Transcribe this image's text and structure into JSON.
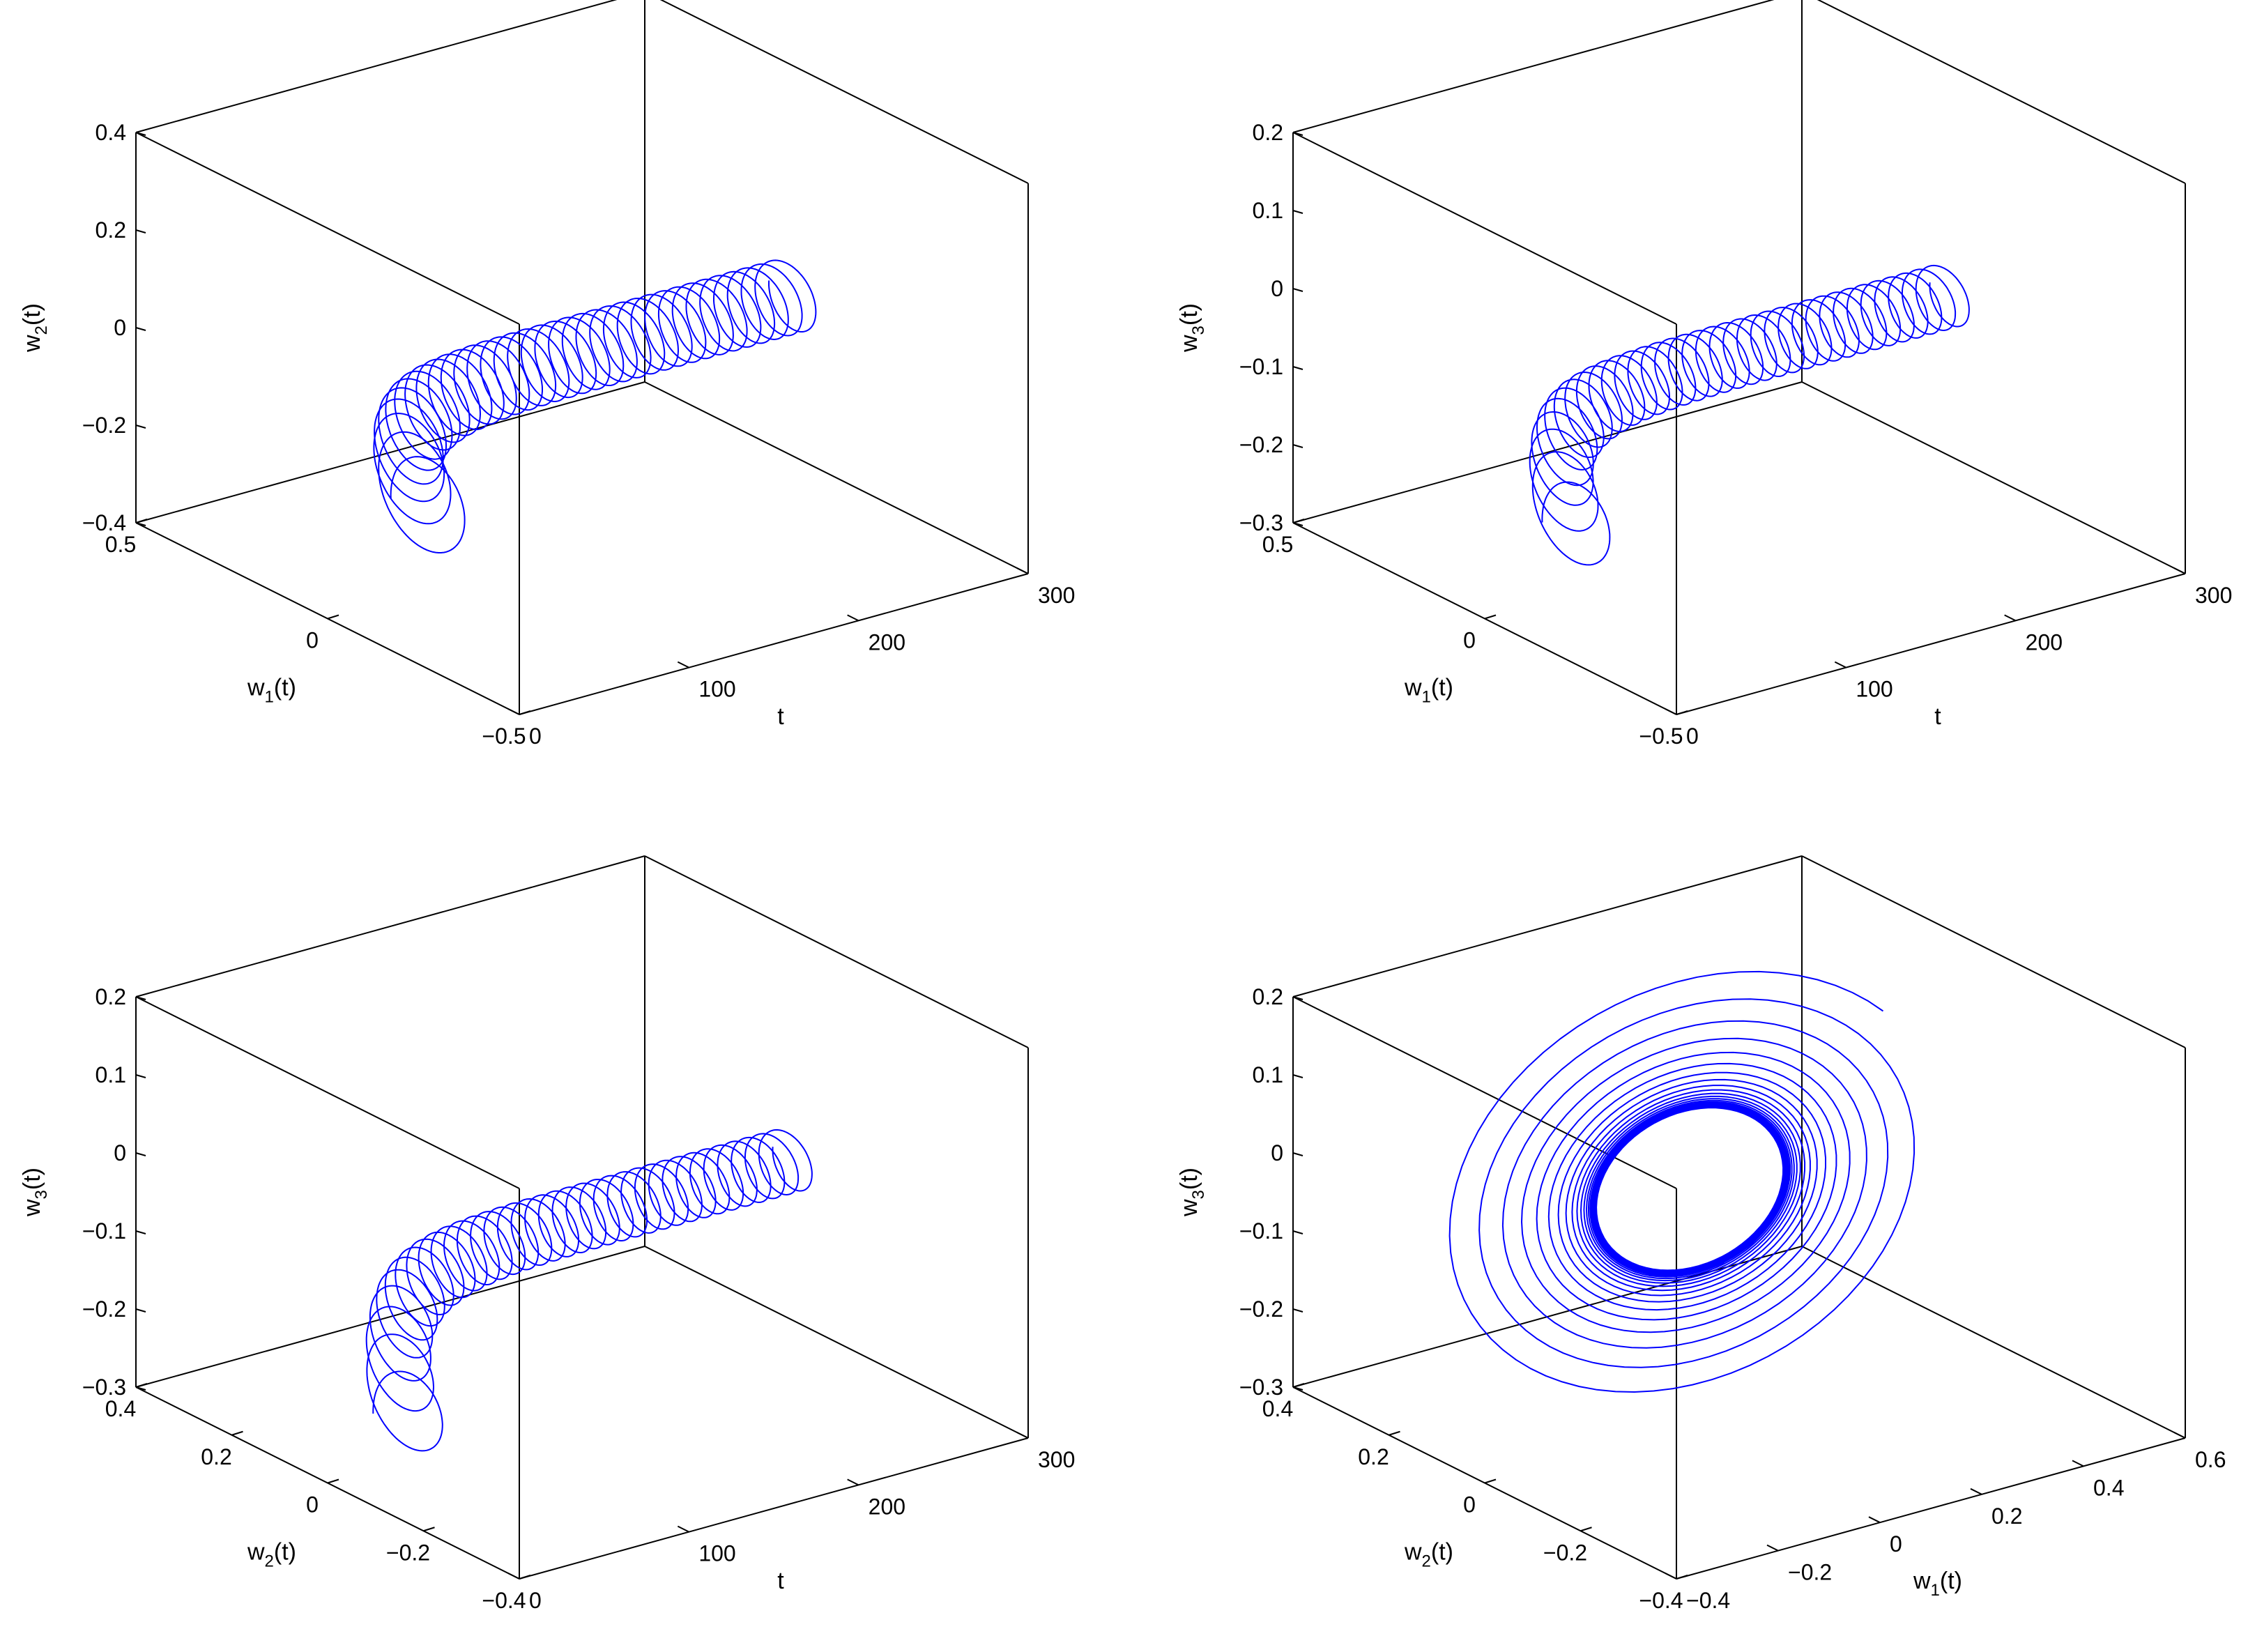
{
  "colors": {
    "curve": "#0000ff",
    "axes": "#000000"
  },
  "chart_data": [
    {
      "type": "line3d",
      "x_axis": {
        "label": "t",
        "ticks": [
          "0",
          "100",
          "200",
          "300"
        ],
        "range": [
          0,
          300
        ]
      },
      "y_axis": {
        "label": "w",
        "sub": "1",
        "suffix": "(t)",
        "ticks": [
          "0.5",
          "0",
          "−0.5"
        ],
        "range": [
          -0.5,
          0.5
        ]
      },
      "z_axis": {
        "label": "w",
        "sub": "2",
        "suffix": "(t)",
        "ticks": [
          "0.4",
          "0.2",
          "0",
          "−0.2",
          "−0.4"
        ],
        "range": [
          -0.4,
          0.4
        ]
      },
      "series": {
        "spiral": {
          "start_offset": [
            -0.55,
            -0.15
          ],
          "r_large": 0.22,
          "r_small": 0.14,
          "settle_t": 75,
          "turns": 34
        }
      }
    },
    {
      "type": "line3d",
      "x_axis": {
        "label": "t",
        "ticks": [
          "0",
          "100",
          "200",
          "300"
        ],
        "range": [
          0,
          300
        ]
      },
      "y_axis": {
        "label": "w",
        "sub": "1",
        "suffix": "(t)",
        "ticks": [
          "0.5",
          "0",
          "−0.5"
        ],
        "range": [
          -0.5,
          0.5
        ]
      },
      "z_axis": {
        "label": "w",
        "sub": "3",
        "suffix": "(t)",
        "ticks": [
          "0.2",
          "0.1",
          "0",
          "−0.1",
          "−0.2",
          "−0.3"
        ],
        "range": [
          -0.3,
          0.2
        ]
      },
      "series": {
        "spiral": {
          "start_offset": [
            -0.5,
            -0.15
          ],
          "r_large": 0.2,
          "r_small": 0.12,
          "settle_t": 75,
          "turns": 34
        }
      }
    },
    {
      "type": "line3d",
      "x_axis": {
        "label": "t",
        "ticks": [
          "0",
          "100",
          "200",
          "300"
        ],
        "range": [
          0,
          300
        ]
      },
      "y_axis": {
        "label": "w",
        "sub": "2",
        "suffix": "(t)",
        "ticks": [
          "0.4",
          "0.2",
          "0",
          "−0.2",
          "−0.4"
        ],
        "range": [
          -0.4,
          0.4
        ]
      },
      "z_axis": {
        "label": "w",
        "sub": "3",
        "suffix": "(t)",
        "ticks": [
          "0.2",
          "0.1",
          "0",
          "−0.1",
          "−0.2",
          "−0.3"
        ],
        "range": [
          -0.3,
          0.2
        ]
      },
      "series": {
        "spiral": {
          "start_offset": [
            -0.35,
            -0.22
          ],
          "r_large": 0.2,
          "r_small": 0.12,
          "settle_t": 75,
          "turns": 34
        }
      }
    },
    {
      "type": "line3d",
      "x_axis": {
        "label": "w",
        "sub": "1",
        "suffix": "(t)",
        "ticks": [
          "−0.4",
          "−0.2",
          "0",
          "0.2",
          "0.4",
          "0.6"
        ],
        "range": [
          -0.4,
          0.6
        ]
      },
      "y_axis": {
        "label": "w",
        "sub": "2",
        "suffix": "(t)",
        "ticks": [
          "0.4",
          "0.2",
          "0",
          "−0.2",
          "−0.4"
        ],
        "range": [
          -0.4,
          0.4
        ]
      },
      "z_axis": {
        "label": "w",
        "sub": "3",
        "suffix": "(t)",
        "ticks": [
          "0.2",
          "0.1",
          "0",
          "−0.1",
          "−0.2",
          "−0.3"
        ],
        "range": [
          -0.3,
          0.2
        ]
      },
      "series": {
        "orbit": {
          "start": [
            0.45,
            0.1,
            -0.2
          ],
          "r_large": 0.38,
          "r_small": 0.14,
          "turns": 40
        }
      }
    }
  ]
}
